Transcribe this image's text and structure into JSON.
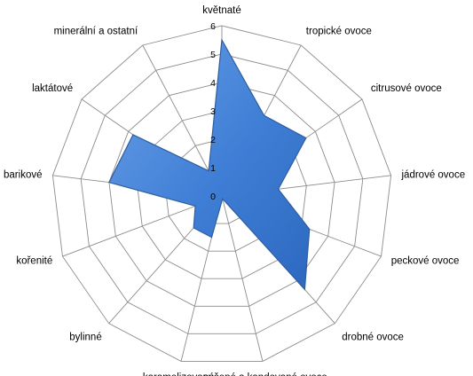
{
  "chart_data": {
    "type": "radar",
    "title": "",
    "categories": [
      "květnaté",
      "tropické ovoce",
      "citrusové ovoce",
      "jádrové ovoce",
      "peckové ovoce",
      "drobné ovoce",
      "sušené a kandované ovoce",
      "karamelizované",
      "bylinné",
      "kořenité",
      "barikové",
      "laktátové",
      "minerální a ostatní"
    ],
    "series": [
      {
        "values": [
          5.5,
          3.2,
          3.6,
          2.0,
          3.3,
          4.4,
          0.1,
          1.5,
          1.5,
          1.0,
          4.0,
          3.8,
          1.0
        ],
        "color": "#4a86d8",
        "stroke": "#2f5e9f"
      }
    ],
    "rlim": [
      0,
      6
    ],
    "ticks": [
      "0",
      "1",
      "2",
      "3",
      "4",
      "5",
      "6"
    ],
    "grid": true,
    "legend": "none"
  }
}
